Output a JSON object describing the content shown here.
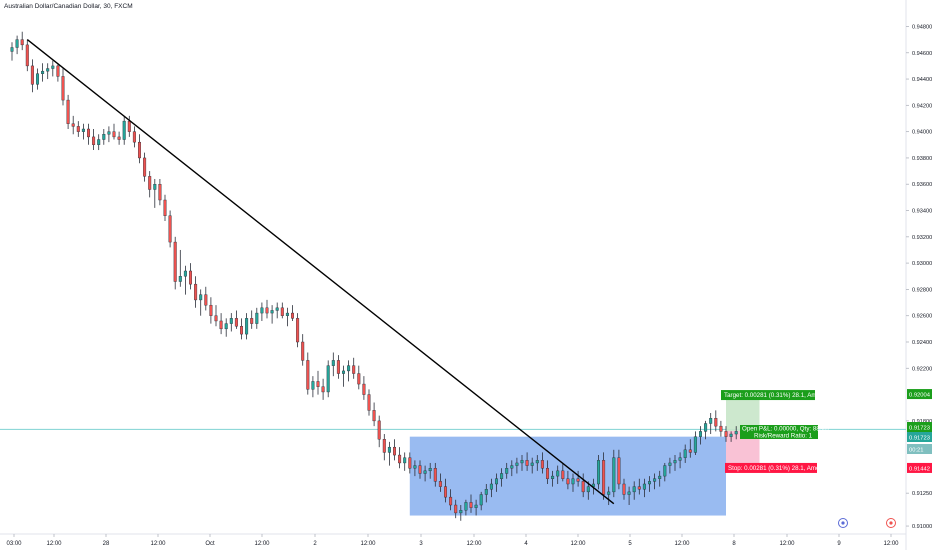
{
  "window": {
    "title": "Australian Dollar/Canadian Dollar, 30, FXCM"
  },
  "colors": {
    "up": "#26a69a",
    "down": "#ef5350",
    "trendline": "#000000",
    "zone": "#6d9eeb",
    "target_fill": "#c8e6c9",
    "stop_fill": "#f8bbd0",
    "target_label": "#1b9e1b",
    "stop_label": "#ff1744",
    "price_line": "#7fd3d3"
  },
  "chart_data": {
    "type": "candlestick",
    "title": "Australian Dollar/Canadian Dollar, 30, FXCM",
    "x_ticks": [
      "03:00",
      "12:00",
      "28",
      "12:00",
      "Oct",
      "12:00",
      "2",
      "12:00",
      "3",
      "12:00",
      "4",
      "12:00",
      "5",
      "12:00",
      "8",
      "12:00",
      "9",
      "12:00"
    ],
    "y_ticks": [
      "0.94800",
      "0.94600",
      "0.94400",
      "0.94200",
      "0.94000",
      "0.93800",
      "0.93600",
      "0.93400",
      "0.93200",
      "0.93000",
      "0.92800",
      "0.92600",
      "0.92400",
      "0.92200",
      "0.91800",
      "0.91250",
      "0.91000"
    ],
    "ylim": [
      0.9097,
      0.9491
    ],
    "x_count": 160,
    "candles": [
      {
        "o": 0.9461,
        "h": 0.9468,
        "l": 0.9454,
        "c": 0.9464
      },
      {
        "o": 0.9464,
        "h": 0.9473,
        "l": 0.9459,
        "c": 0.947
      },
      {
        "o": 0.947,
        "h": 0.9476,
        "l": 0.9462,
        "c": 0.9466
      },
      {
        "o": 0.9466,
        "h": 0.947,
        "l": 0.9446,
        "c": 0.945
      },
      {
        "o": 0.945,
        "h": 0.9455,
        "l": 0.943,
        "c": 0.9436
      },
      {
        "o": 0.9436,
        "h": 0.9448,
        "l": 0.9432,
        "c": 0.9444
      },
      {
        "o": 0.9444,
        "h": 0.9452,
        "l": 0.9438,
        "c": 0.9446
      },
      {
        "o": 0.9446,
        "h": 0.9452,
        "l": 0.944,
        "c": 0.9448
      },
      {
        "o": 0.9448,
        "h": 0.9454,
        "l": 0.9442,
        "c": 0.945
      },
      {
        "o": 0.945,
        "h": 0.9452,
        "l": 0.9438,
        "c": 0.9442
      },
      {
        "o": 0.9442,
        "h": 0.9448,
        "l": 0.942,
        "c": 0.9424
      },
      {
        "o": 0.9424,
        "h": 0.9428,
        "l": 0.9402,
        "c": 0.9406
      },
      {
        "o": 0.9406,
        "h": 0.9412,
        "l": 0.9398,
        "c": 0.9404
      },
      {
        "o": 0.9404,
        "h": 0.9408,
        "l": 0.9396,
        "c": 0.94
      },
      {
        "o": 0.94,
        "h": 0.9406,
        "l": 0.9394,
        "c": 0.9402
      },
      {
        "o": 0.9402,
        "h": 0.9406,
        "l": 0.939,
        "c": 0.9396
      },
      {
        "o": 0.9396,
        "h": 0.9402,
        "l": 0.9386,
        "c": 0.939
      },
      {
        "o": 0.939,
        "h": 0.9398,
        "l": 0.9386,
        "c": 0.9394
      },
      {
        "o": 0.9394,
        "h": 0.9402,
        "l": 0.939,
        "c": 0.9398
      },
      {
        "o": 0.9398,
        "h": 0.9404,
        "l": 0.9392,
        "c": 0.94
      },
      {
        "o": 0.94,
        "h": 0.9406,
        "l": 0.9394,
        "c": 0.9396
      },
      {
        "o": 0.9396,
        "h": 0.94,
        "l": 0.939,
        "c": 0.9394
      },
      {
        "o": 0.9394,
        "h": 0.9412,
        "l": 0.939,
        "c": 0.9408
      },
      {
        "o": 0.9408,
        "h": 0.9412,
        "l": 0.9396,
        "c": 0.94
      },
      {
        "o": 0.94,
        "h": 0.9404,
        "l": 0.9388,
        "c": 0.9392
      },
      {
        "o": 0.9392,
        "h": 0.9398,
        "l": 0.9376,
        "c": 0.938
      },
      {
        "o": 0.938,
        "h": 0.9384,
        "l": 0.9362,
        "c": 0.9366
      },
      {
        "o": 0.9366,
        "h": 0.937,
        "l": 0.935,
        "c": 0.9356
      },
      {
        "o": 0.9356,
        "h": 0.9364,
        "l": 0.9342,
        "c": 0.936
      },
      {
        "o": 0.936,
        "h": 0.9364,
        "l": 0.9344,
        "c": 0.9348
      },
      {
        "o": 0.9348,
        "h": 0.9352,
        "l": 0.9332,
        "c": 0.9336
      },
      {
        "o": 0.9336,
        "h": 0.934,
        "l": 0.9312,
        "c": 0.9316
      },
      {
        "o": 0.9316,
        "h": 0.932,
        "l": 0.928,
        "c": 0.9286
      },
      {
        "o": 0.9286,
        "h": 0.931,
        "l": 0.9282,
        "c": 0.929
      },
      {
        "o": 0.929,
        "h": 0.9298,
        "l": 0.9276,
        "c": 0.9294
      },
      {
        "o": 0.9294,
        "h": 0.93,
        "l": 0.928,
        "c": 0.9284
      },
      {
        "o": 0.9284,
        "h": 0.929,
        "l": 0.9266,
        "c": 0.9272
      },
      {
        "o": 0.9272,
        "h": 0.928,
        "l": 0.926,
        "c": 0.9276
      },
      {
        "o": 0.9276,
        "h": 0.9282,
        "l": 0.9264,
        "c": 0.9268
      },
      {
        "o": 0.9268,
        "h": 0.9274,
        "l": 0.9254,
        "c": 0.926
      },
      {
        "o": 0.926,
        "h": 0.9268,
        "l": 0.9252,
        "c": 0.9256
      },
      {
        "o": 0.9256,
        "h": 0.9262,
        "l": 0.9246,
        "c": 0.925
      },
      {
        "o": 0.925,
        "h": 0.9258,
        "l": 0.9244,
        "c": 0.9254
      },
      {
        "o": 0.9254,
        "h": 0.9262,
        "l": 0.9248,
        "c": 0.9258
      },
      {
        "o": 0.9258,
        "h": 0.9264,
        "l": 0.925,
        "c": 0.9252
      },
      {
        "o": 0.9252,
        "h": 0.9258,
        "l": 0.9242,
        "c": 0.9246
      },
      {
        "o": 0.9246,
        "h": 0.9262,
        "l": 0.9242,
        "c": 0.9258
      },
      {
        "o": 0.9258,
        "h": 0.9264,
        "l": 0.925,
        "c": 0.9254
      },
      {
        "o": 0.9254,
        "h": 0.9266,
        "l": 0.925,
        "c": 0.9262
      },
      {
        "o": 0.9262,
        "h": 0.927,
        "l": 0.9256,
        "c": 0.9266
      },
      {
        "o": 0.9266,
        "h": 0.9272,
        "l": 0.9258,
        "c": 0.9262
      },
      {
        "o": 0.9262,
        "h": 0.9268,
        "l": 0.9254,
        "c": 0.9264
      },
      {
        "o": 0.9264,
        "h": 0.927,
        "l": 0.9258,
        "c": 0.9266
      },
      {
        "o": 0.9266,
        "h": 0.927,
        "l": 0.9258,
        "c": 0.926
      },
      {
        "o": 0.926,
        "h": 0.9266,
        "l": 0.9252,
        "c": 0.9262
      },
      {
        "o": 0.9262,
        "h": 0.9268,
        "l": 0.9256,
        "c": 0.9258
      },
      {
        "o": 0.9258,
        "h": 0.9262,
        "l": 0.9236,
        "c": 0.924
      },
      {
        "o": 0.924,
        "h": 0.9246,
        "l": 0.9222,
        "c": 0.9226
      },
      {
        "o": 0.9226,
        "h": 0.9232,
        "l": 0.92,
        "c": 0.9204
      },
      {
        "o": 0.9204,
        "h": 0.9214,
        "l": 0.9198,
        "c": 0.921
      },
      {
        "o": 0.921,
        "h": 0.9218,
        "l": 0.92,
        "c": 0.9206
      },
      {
        "o": 0.9206,
        "h": 0.9212,
        "l": 0.9196,
        "c": 0.9202
      },
      {
        "o": 0.9202,
        "h": 0.9226,
        "l": 0.9198,
        "c": 0.9222
      },
      {
        "o": 0.9222,
        "h": 0.9232,
        "l": 0.9214,
        "c": 0.9226
      },
      {
        "o": 0.9226,
        "h": 0.923,
        "l": 0.9212,
        "c": 0.9216
      },
      {
        "o": 0.9216,
        "h": 0.9222,
        "l": 0.9206,
        "c": 0.9218
      },
      {
        "o": 0.9218,
        "h": 0.9226,
        "l": 0.921,
        "c": 0.9222
      },
      {
        "o": 0.9222,
        "h": 0.9228,
        "l": 0.9212,
        "c": 0.9216
      },
      {
        "o": 0.9216,
        "h": 0.9222,
        "l": 0.9204,
        "c": 0.9208
      },
      {
        "o": 0.9208,
        "h": 0.9214,
        "l": 0.9196,
        "c": 0.92
      },
      {
        "o": 0.92,
        "h": 0.9204,
        "l": 0.9184,
        "c": 0.9188
      },
      {
        "o": 0.9188,
        "h": 0.9194,
        "l": 0.9176,
        "c": 0.918
      },
      {
        "o": 0.918,
        "h": 0.9184,
        "l": 0.916,
        "c": 0.9166
      },
      {
        "o": 0.9166,
        "h": 0.917,
        "l": 0.915,
        "c": 0.9156
      },
      {
        "o": 0.9156,
        "h": 0.9164,
        "l": 0.9146,
        "c": 0.916
      },
      {
        "o": 0.916,
        "h": 0.9166,
        "l": 0.915,
        "c": 0.9154
      },
      {
        "o": 0.9154,
        "h": 0.916,
        "l": 0.9144,
        "c": 0.9148
      },
      {
        "o": 0.9148,
        "h": 0.9156,
        "l": 0.9142,
        "c": 0.9152
      },
      {
        "o": 0.9152,
        "h": 0.9156,
        "l": 0.914,
        "c": 0.9144
      },
      {
        "o": 0.9144,
        "h": 0.915,
        "l": 0.9138,
        "c": 0.9146
      },
      {
        "o": 0.9146,
        "h": 0.915,
        "l": 0.9136,
        "c": 0.914
      },
      {
        "o": 0.914,
        "h": 0.9146,
        "l": 0.9134,
        "c": 0.9142
      },
      {
        "o": 0.9142,
        "h": 0.9148,
        "l": 0.9136,
        "c": 0.9144
      },
      {
        "o": 0.9144,
        "h": 0.9148,
        "l": 0.913,
        "c": 0.9134
      },
      {
        "o": 0.9134,
        "h": 0.914,
        "l": 0.9126,
        "c": 0.913
      },
      {
        "o": 0.913,
        "h": 0.9136,
        "l": 0.9118,
        "c": 0.9122
      },
      {
        "o": 0.9122,
        "h": 0.9128,
        "l": 0.9112,
        "c": 0.9116
      },
      {
        "o": 0.9116,
        "h": 0.912,
        "l": 0.9106,
        "c": 0.911
      },
      {
        "o": 0.911,
        "h": 0.9116,
        "l": 0.9104,
        "c": 0.9112
      },
      {
        "o": 0.9112,
        "h": 0.912,
        "l": 0.9108,
        "c": 0.9118
      },
      {
        "o": 0.9118,
        "h": 0.9124,
        "l": 0.911,
        "c": 0.9114
      },
      {
        "o": 0.9114,
        "h": 0.912,
        "l": 0.9108,
        "c": 0.9116
      },
      {
        "o": 0.9116,
        "h": 0.9126,
        "l": 0.9112,
        "c": 0.9124
      },
      {
        "o": 0.9124,
        "h": 0.9132,
        "l": 0.9118,
        "c": 0.9128
      },
      {
        "o": 0.9128,
        "h": 0.9136,
        "l": 0.9122,
        "c": 0.9132
      },
      {
        "o": 0.9132,
        "h": 0.914,
        "l": 0.9126,
        "c": 0.9136
      },
      {
        "o": 0.9136,
        "h": 0.9144,
        "l": 0.913,
        "c": 0.914
      },
      {
        "o": 0.914,
        "h": 0.9148,
        "l": 0.9136,
        "c": 0.9144
      },
      {
        "o": 0.9144,
        "h": 0.915,
        "l": 0.9138,
        "c": 0.9146
      },
      {
        "o": 0.9146,
        "h": 0.9152,
        "l": 0.914,
        "c": 0.9148
      },
      {
        "o": 0.9148,
        "h": 0.9154,
        "l": 0.9142,
        "c": 0.915
      },
      {
        "o": 0.915,
        "h": 0.9156,
        "l": 0.9142,
        "c": 0.9146
      },
      {
        "o": 0.9146,
        "h": 0.9152,
        "l": 0.914,
        "c": 0.9148
      },
      {
        "o": 0.9148,
        "h": 0.9154,
        "l": 0.9142,
        "c": 0.915
      },
      {
        "o": 0.915,
        "h": 0.9156,
        "l": 0.914,
        "c": 0.9144
      },
      {
        "o": 0.9144,
        "h": 0.915,
        "l": 0.9132,
        "c": 0.9136
      },
      {
        "o": 0.9136,
        "h": 0.9142,
        "l": 0.913,
        "c": 0.9138
      },
      {
        "o": 0.9138,
        "h": 0.9146,
        "l": 0.9132,
        "c": 0.9142
      },
      {
        "o": 0.9142,
        "h": 0.9148,
        "l": 0.9134,
        "c": 0.9136
      },
      {
        "o": 0.9136,
        "h": 0.9142,
        "l": 0.9128,
        "c": 0.9132
      },
      {
        "o": 0.9132,
        "h": 0.914,
        "l": 0.9126,
        "c": 0.9136
      },
      {
        "o": 0.9136,
        "h": 0.9142,
        "l": 0.913,
        "c": 0.9134
      },
      {
        "o": 0.9134,
        "h": 0.914,
        "l": 0.9122,
        "c": 0.9126
      },
      {
        "o": 0.9126,
        "h": 0.9134,
        "l": 0.912,
        "c": 0.913
      },
      {
        "o": 0.913,
        "h": 0.9136,
        "l": 0.9124,
        "c": 0.9132
      },
      {
        "o": 0.9132,
        "h": 0.9154,
        "l": 0.9128,
        "c": 0.915
      },
      {
        "o": 0.915,
        "h": 0.9156,
        "l": 0.912,
        "c": 0.9124
      },
      {
        "o": 0.9124,
        "h": 0.913,
        "l": 0.9116,
        "c": 0.9126
      },
      {
        "o": 0.9126,
        "h": 0.9158,
        "l": 0.9122,
        "c": 0.9152
      },
      {
        "o": 0.9152,
        "h": 0.9158,
        "l": 0.9128,
        "c": 0.9132
      },
      {
        "o": 0.9132,
        "h": 0.9136,
        "l": 0.912,
        "c": 0.9124
      },
      {
        "o": 0.9124,
        "h": 0.913,
        "l": 0.9116,
        "c": 0.9126
      },
      {
        "o": 0.9126,
        "h": 0.9134,
        "l": 0.912,
        "c": 0.913
      },
      {
        "o": 0.913,
        "h": 0.9136,
        "l": 0.9124,
        "c": 0.9128
      },
      {
        "o": 0.9128,
        "h": 0.9136,
        "l": 0.9122,
        "c": 0.9132
      },
      {
        "o": 0.9132,
        "h": 0.9138,
        "l": 0.9126,
        "c": 0.9134
      },
      {
        "o": 0.9134,
        "h": 0.914,
        "l": 0.9128,
        "c": 0.9136
      },
      {
        "o": 0.9136,
        "h": 0.9142,
        "l": 0.913,
        "c": 0.9138
      },
      {
        "o": 0.9138,
        "h": 0.9148,
        "l": 0.9134,
        "c": 0.9146
      },
      {
        "o": 0.9146,
        "h": 0.9152,
        "l": 0.914,
        "c": 0.9148
      },
      {
        "o": 0.9148,
        "h": 0.9154,
        "l": 0.9142,
        "c": 0.915
      },
      {
        "o": 0.915,
        "h": 0.9156,
        "l": 0.9144,
        "c": 0.9152
      },
      {
        "o": 0.9152,
        "h": 0.9162,
        "l": 0.9148,
        "c": 0.9158
      },
      {
        "o": 0.9158,
        "h": 0.9166,
        "l": 0.9152,
        "c": 0.9156
      },
      {
        "o": 0.9156,
        "h": 0.9172,
        "l": 0.9154,
        "c": 0.9168
      },
      {
        "o": 0.9168,
        "h": 0.9176,
        "l": 0.9162,
        "c": 0.9172
      },
      {
        "o": 0.9172,
        "h": 0.918,
        "l": 0.9166,
        "c": 0.9178
      },
      {
        "o": 0.9178,
        "h": 0.9186,
        "l": 0.917,
        "c": 0.9182
      },
      {
        "o": 0.9182,
        "h": 0.9188,
        "l": 0.9172,
        "c": 0.9176
      },
      {
        "o": 0.9176,
        "h": 0.918,
        "l": 0.9168,
        "c": 0.9172
      },
      {
        "o": 0.9172,
        "h": 0.9176,
        "l": 0.9164,
        "c": 0.9168
      },
      {
        "o": 0.9168,
        "h": 0.9172,
        "l": 0.9164,
        "c": 0.917
      },
      {
        "o": 0.917,
        "h": 0.9176,
        "l": 0.9166,
        "c": 0.9172
      }
    ],
    "trendline": {
      "from": {
        "x": 3,
        "y": 0.947
      },
      "to": {
        "x": 118,
        "y": 0.9117
      }
    },
    "zone": {
      "x_start": 78,
      "x_end": 140,
      "y_top": 0.9168,
      "y_bottom": 0.9108
    },
    "position": {
      "x_start": 140,
      "x_end": 145,
      "entry": 0.91723,
      "target": 0.92004,
      "stop": 0.91442,
      "target_text": "Target: 0.00281 (0.31%) 28.1, Amount",
      "stop_text": "Stop: 0.00281 (0.31%) 28.1, Amount",
      "pnl_text": "Open P&L: 0.00000, Qty: 88967",
      "ratio_text": "Risk/Reward Ratio: 1"
    },
    "price_labels": {
      "target": "0.92004",
      "entry_a": "0.91723",
      "entry_b": "0.91723",
      "current": "00:21",
      "stop": "0.91442"
    },
    "current_price": 0.91735
  }
}
